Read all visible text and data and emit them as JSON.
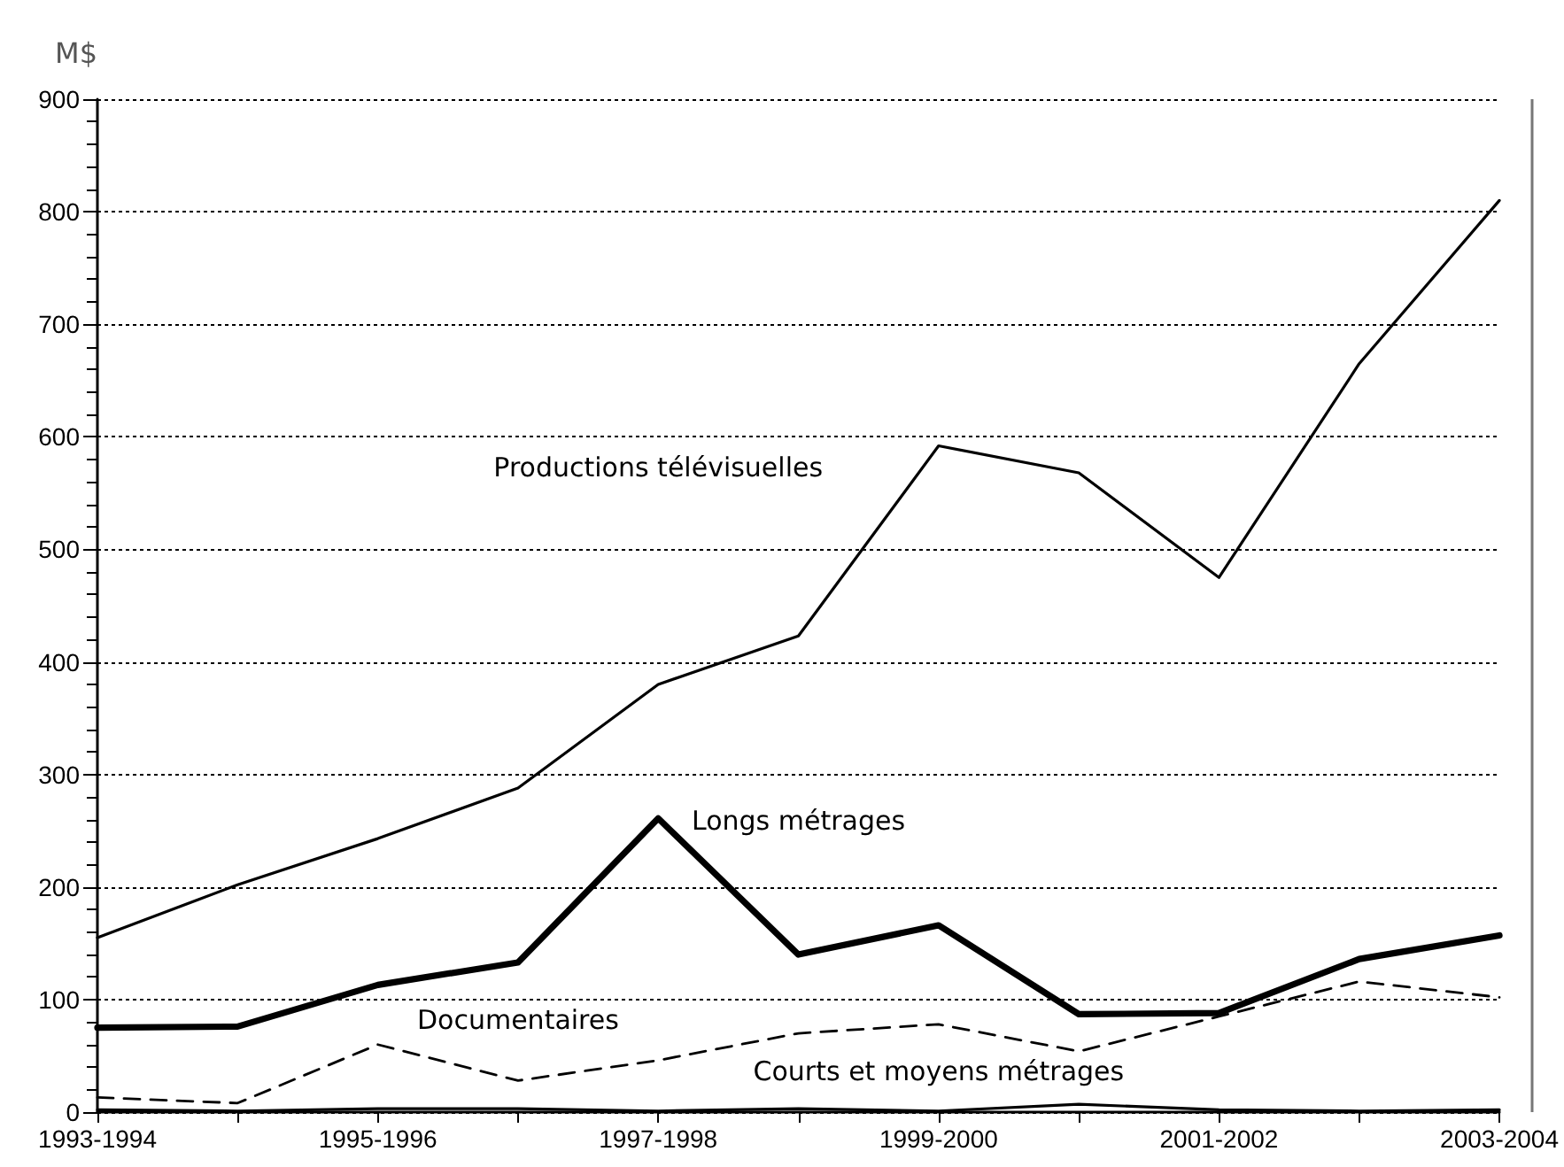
{
  "chart_data": {
    "type": "line",
    "ylabel": "M$",
    "categories": [
      "1993-1994",
      null,
      "1995-1996",
      null,
      "1997-1998",
      null,
      "1999-2000",
      null,
      "2001-2002",
      null,
      "2003-2004"
    ],
    "series": [
      {
        "name": "Productions télévisuelles",
        "color": "#000000",
        "line_style": "solid",
        "values": [
          155,
          202,
          243,
          288,
          380,
          423,
          592,
          568,
          475,
          665,
          810
        ]
      },
      {
        "name": "Longs métrages",
        "color": "#000000",
        "line_style": "solid",
        "values": [
          75,
          76,
          113,
          133,
          261,
          140,
          166,
          87,
          88,
          136,
          157
        ]
      },
      {
        "name": "Documentaires",
        "color": "#000000",
        "line_style": "dashed",
        "values": [
          13,
          8,
          60,
          28,
          46,
          70,
          78,
          54,
          85,
          116,
          102
        ]
      },
      {
        "name": "Courts et moyens métrages",
        "color": "#000000",
        "line_style": "solid",
        "values": [
          2,
          1,
          3,
          3,
          1,
          3,
          1,
          7,
          2,
          1,
          2
        ]
      }
    ],
    "ylim": [
      0,
      900
    ],
    "yticks": [
      0,
      100,
      200,
      300,
      400,
      500,
      600,
      700,
      800,
      900
    ],
    "grid": "y",
    "legend": false,
    "marker": "none"
  }
}
